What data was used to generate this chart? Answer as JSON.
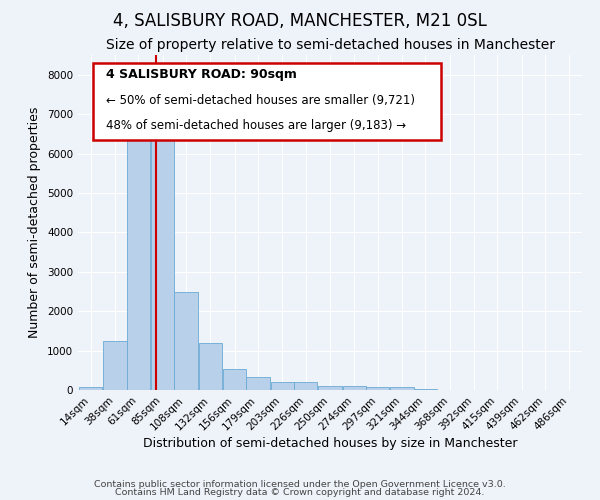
{
  "title": "4, SALISBURY ROAD, MANCHESTER, M21 0SL",
  "subtitle": "Size of property relative to semi-detached houses in Manchester",
  "xlabel": "Distribution of semi-detached houses by size in Manchester",
  "ylabel": "Number of semi-detached properties",
  "bin_labels": [
    "14sqm",
    "38sqm",
    "61sqm",
    "85sqm",
    "108sqm",
    "132sqm",
    "156sqm",
    "179sqm",
    "203sqm",
    "226sqm",
    "250sqm",
    "274sqm",
    "297sqm",
    "321sqm",
    "344sqm",
    "368sqm",
    "392sqm",
    "415sqm",
    "439sqm",
    "462sqm",
    "486sqm"
  ],
  "bin_left_edges": [
    14,
    38,
    61,
    85,
    108,
    132,
    156,
    179,
    203,
    226,
    250,
    274,
    297,
    321,
    344,
    368,
    392,
    415,
    439,
    462,
    486
  ],
  "bar_heights": [
    75,
    1250,
    6600,
    6750,
    2480,
    1200,
    530,
    340,
    200,
    200,
    110,
    110,
    75,
    75,
    20,
    5,
    5,
    2,
    2,
    1,
    0
  ],
  "bin_width": 23,
  "bar_color": "#b8d0ea",
  "bar_edge_color": "#6aaad4",
  "red_line_x": 90,
  "ylim": [
    0,
    8500
  ],
  "yticks": [
    0,
    1000,
    2000,
    3000,
    4000,
    5000,
    6000,
    7000,
    8000
  ],
  "annotation_title": "4 SALISBURY ROAD: 90sqm",
  "annotation_line1": "← 50% of semi-detached houses are smaller (9,721)",
  "annotation_line2": "48% of semi-detached houses are larger (9,183) →",
  "annotation_box_facecolor": "#ffffff",
  "annotation_box_edgecolor": "#cc0000",
  "footer1": "Contains HM Land Registry data © Crown copyright and database right 2024.",
  "footer2": "Contains public sector information licensed under the Open Government Licence v3.0.",
  "background_color": "#eef2f9",
  "grid_color": "#ffffff",
  "title_fontsize": 12,
  "subtitle_fontsize": 10,
  "axis_label_fontsize": 9,
  "tick_fontsize": 7.5,
  "annotation_title_fontsize": 9,
  "annotation_text_fontsize": 8.5,
  "footer_fontsize": 6.8
}
